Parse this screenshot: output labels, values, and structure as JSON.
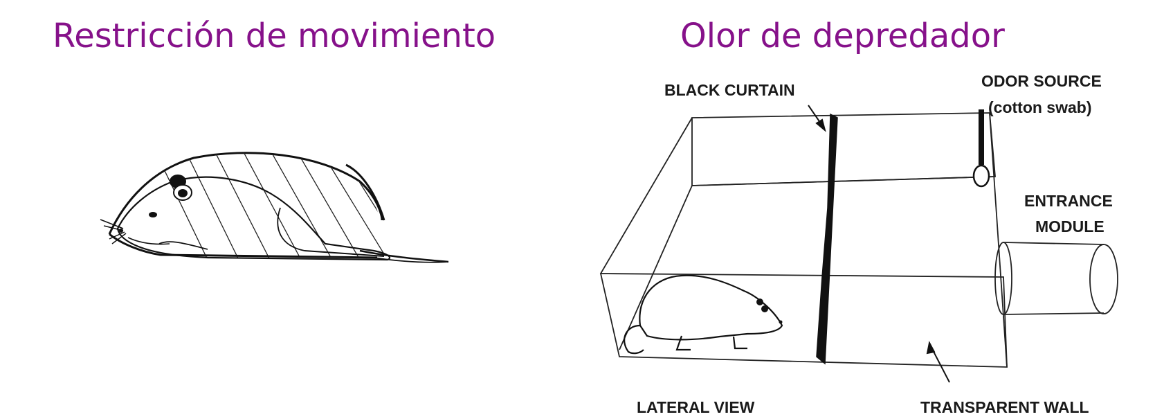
{
  "titles": {
    "left": "Restricción de movimiento",
    "right": "Olor de depredador"
  },
  "colors": {
    "title": "#86118a",
    "ink": "#111111"
  },
  "labels": {
    "black_curtain": "BLACK CURTAIN",
    "odor_source_line1": "ODOR SOURCE",
    "odor_source_line2": "(cotton swab)",
    "entrance_line1": "ENTRANCE",
    "entrance_line2": "MODULE",
    "lateral_view": "LATERAL VIEW",
    "transparent_wall": "TRANSPARENT WALL"
  }
}
